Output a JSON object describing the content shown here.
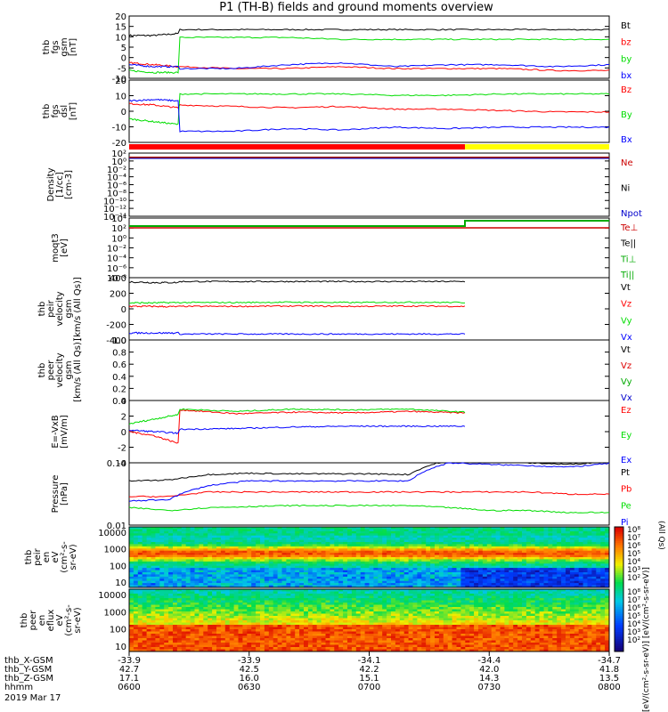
{
  "title": "P1 (TH-B) fields and ground moments overview",
  "colors": {
    "black": "#000000",
    "red": "#ff0000",
    "green": "#00dd00",
    "blue": "#0000ff",
    "yellow": "#ffff00"
  },
  "chart_data": [
    {
      "id": "fgs_gsm",
      "type": "line",
      "ylabel": [
        "thb",
        "fgs",
        "gsm",
        "[nT]"
      ],
      "yticks": [
        "20",
        "15",
        "10",
        "5",
        "0",
        "-5",
        "-10"
      ],
      "ylim": [
        -12,
        20
      ],
      "legend": [
        "Bt",
        "bz",
        "by",
        "bx"
      ],
      "series": [
        {
          "name": "Bt",
          "color": "black",
          "before": [
            10,
            10,
            11
          ],
          "after": [
            13,
            13,
            13,
            13,
            13,
            13,
            13,
            13,
            13
          ]
        },
        {
          "name": "bz",
          "color": "red",
          "before": [
            -4,
            -5,
            -6
          ],
          "after": [
            -6,
            -7,
            -7,
            -6,
            -7,
            -7,
            -7,
            -8,
            -8
          ]
        },
        {
          "name": "by",
          "color": "green",
          "before": [
            -8,
            -9,
            -9
          ],
          "after": [
            9,
            9,
            9,
            8,
            8,
            8,
            8,
            8,
            8
          ]
        },
        {
          "name": "bx",
          "color": "blue",
          "before": [
            -5,
            -6,
            -6
          ],
          "after": [
            -7,
            -7,
            -5,
            -4,
            -6,
            -5,
            -5,
            -6,
            -5
          ]
        }
      ]
    },
    {
      "id": "fgs_dsl",
      "type": "line",
      "ylabel": [
        "thb",
        "fgs",
        "dsl",
        "[nT]"
      ],
      "yticks": [
        "20",
        "10",
        "0",
        "-10",
        "-20"
      ],
      "ylim": [
        -25,
        20
      ],
      "legend": [
        "Bz",
        "By",
        "Bx"
      ],
      "series": [
        {
          "name": "Bz",
          "color": "red",
          "before": [
            3,
            2,
            0
          ],
          "after": [
            2,
            1,
            0,
            1,
            -1,
            -1,
            -2,
            -3,
            -3
          ]
        },
        {
          "name": "By",
          "color": "green",
          "before": [
            -8,
            -10,
            -12
          ],
          "after": [
            10,
            10,
            10,
            10,
            9,
            9,
            10,
            10,
            10
          ]
        },
        {
          "name": "Bx",
          "color": "blue",
          "before": [
            5,
            6,
            5
          ],
          "after": [
            -17,
            -17,
            -15,
            -16,
            -14,
            -15,
            -14,
            -14,
            -14
          ]
        }
      ]
    },
    {
      "id": "density",
      "type": "line",
      "ylabel": [
        "Density",
        "[1/cc]",
        "[cm-3]"
      ],
      "yticks": [
        "10²",
        "10⁰",
        "10⁻²",
        "10⁻⁴",
        "10⁻⁶",
        "10⁻⁸",
        "10⁻¹⁰",
        "10⁻¹²",
        "10⁻¹⁴"
      ],
      "legend": [
        "Ne",
        "Ni",
        "Npot"
      ]
    },
    {
      "id": "temperature",
      "type": "line",
      "ylabel": [
        "moqt3",
        "[eV]"
      ],
      "yticks": [
        "10⁴",
        "10²",
        "10⁰",
        "10⁻²",
        "10⁻⁴",
        "10⁻⁶",
        "10⁻⁸"
      ],
      "legend": [
        "Te⊥",
        "Te||",
        "Ti⊥",
        "Ti||"
      ]
    },
    {
      "id": "peir_vel",
      "type": "line",
      "ylabel": [
        "thb",
        "peir",
        "velocity",
        "gsm",
        "[km/s (All Qs)]"
      ],
      "yticks": [
        "400",
        "200",
        "0",
        "-200",
        "-400"
      ],
      "ylim": [
        -460,
        430
      ],
      "legend": [
        "Vt",
        "Vz",
        "Vy",
        "Vx"
      ],
      "series": [
        {
          "name": "Vt",
          "color": "black",
          "before": [
            370,
            360,
            360
          ],
          "after": [
            375,
            375,
            375,
            375,
            375,
            375
          ]
        },
        {
          "name": "Vz",
          "color": "red",
          "before": [
            20,
            20,
            15
          ],
          "after": [
            20,
            20,
            25,
            20,
            25,
            20
          ]
        },
        {
          "name": "Vy",
          "color": "green",
          "before": [
            70,
            70,
            75
          ],
          "after": [
            75,
            75,
            80,
            75,
            80,
            75
          ]
        },
        {
          "name": "Vx",
          "color": "blue",
          "before": [
            -360,
            -360,
            -360
          ],
          "after": [
            -375,
            -375,
            -375,
            -375,
            -375,
            -375
          ]
        }
      ]
    },
    {
      "id": "peer_vel",
      "type": "line",
      "ylabel": [
        "thb",
        "peer",
        "velocity",
        "gsm",
        "[km/s (All Qs)]"
      ],
      "yticks": [
        "1.0",
        "0.8",
        "0.6",
        "0.4",
        "0.2",
        "0.0"
      ],
      "ylim": [
        0,
        1
      ],
      "legend": [
        "Vt",
        "Vz",
        "Vy",
        "Vx"
      ]
    },
    {
      "id": "efield",
      "type": "line",
      "ylabel": [
        "E=-VxB",
        "[mV/m]"
      ],
      "yticks": [
        "4",
        "2",
        "0",
        "-2",
        "-4"
      ],
      "ylim": [
        -4,
        4
      ],
      "legend": [
        "Ez",
        "Ey",
        "Ex"
      ],
      "series": [
        {
          "name": "Ez",
          "color": "red",
          "before": [
            0,
            -0.5,
            -1.5
          ],
          "after": [
            2.8,
            2.3,
            2.5,
            2.4,
            2.6,
            2.4
          ]
        },
        {
          "name": "Ey",
          "color": "green",
          "before": [
            1,
            1.6,
            2.2
          ],
          "after": [
            2.9,
            2.6,
            2.9,
            2.8,
            2.9,
            2.5
          ]
        },
        {
          "name": "Ex",
          "color": "blue",
          "before": [
            0.2,
            0,
            -0.2
          ],
          "after": [
            0.3,
            0.4,
            0.6,
            0.7,
            0.7,
            0.7
          ]
        }
      ]
    },
    {
      "id": "pressure",
      "type": "line",
      "ylabel": [
        "Pressure",
        "[nPa]"
      ],
      "yticks": [
        "0.10",
        "0.01"
      ],
      "legend": [
        "Pt",
        "Pb",
        "Pe",
        "Pi"
      ],
      "ylabel_right": "(All Qs)",
      "series": [
        {
          "name": "Pt",
          "color": "black",
          "vals": [
            0.16,
            0.17,
            0.24,
            0.26,
            0.25,
            0.25,
            0.25,
            0.24,
            0.6,
            0.55,
            0.5,
            0.45,
            0.55
          ]
        },
        {
          "name": "Pb",
          "color": "red",
          "vals": [
            0.06,
            0.06,
            0.08,
            0.08,
            0.08,
            0.08,
            0.08,
            0.08,
            0.08,
            0.08,
            0.08,
            0.07,
            0.07
          ]
        },
        {
          "name": "Pe",
          "color": "green",
          "vals": [
            0.03,
            0.025,
            0.03,
            0.032,
            0.034,
            0.034,
            0.034,
            0.034,
            0.03,
            0.025,
            0.025,
            0.022,
            0.022
          ]
        },
        {
          "name": "Pi",
          "color": "blue",
          "vals": [
            0.045,
            0.05,
            0.12,
            0.16,
            0.16,
            0.16,
            0.16,
            0.16,
            0.5,
            0.45,
            0.42,
            0.38,
            0.48
          ]
        }
      ]
    },
    {
      "id": "peir_spec",
      "type": "heatmap",
      "ylabel": [
        "thb",
        "peir",
        "en",
        "eV",
        "(cm²-s-",
        "sr-eV)"
      ],
      "yticks": [
        "10000",
        "1000",
        "100",
        "10"
      ]
    },
    {
      "id": "peer_spec",
      "type": "heatmap",
      "ylabel": [
        "thb",
        "peer",
        "en",
        "eflux",
        "eV",
        "(cm²-s-",
        "sr-eV)"
      ],
      "yticks": [
        "10000",
        "1000",
        "100",
        "10"
      ]
    }
  ],
  "colorbar": {
    "ticks_top": [
      "10⁸",
      "10⁷",
      "10⁶",
      "10⁵",
      "10⁴",
      "10³",
      "10²"
    ],
    "ticks_bottom": [
      "10⁸",
      "10⁷",
      "10⁶",
      "10⁵",
      "10⁴",
      "10³",
      "10²"
    ],
    "label": "[eV/(cm²-s-sr-eV)] [eV/(cm²-s-sr-eV)]"
  },
  "xaxis": {
    "rows": [
      {
        "name": "thb_X-GSM",
        "values": [
          "-33.9",
          "-33.9",
          "-34.1",
          "-34.4",
          "-34.7"
        ]
      },
      {
        "name": "thb_Y-GSM",
        "values": [
          "42.7",
          "42.5",
          "42.2",
          "42.0",
          "41.8"
        ]
      },
      {
        "name": "thb_Z-GSM",
        "values": [
          "17.1",
          "16.0",
          "15.1",
          "14.3",
          "13.5"
        ]
      },
      {
        "name": "hhmm",
        "values": [
          "0600",
          "0630",
          "0700",
          "0730",
          "0800"
        ]
      }
    ],
    "date": "2019 Mar 17"
  }
}
